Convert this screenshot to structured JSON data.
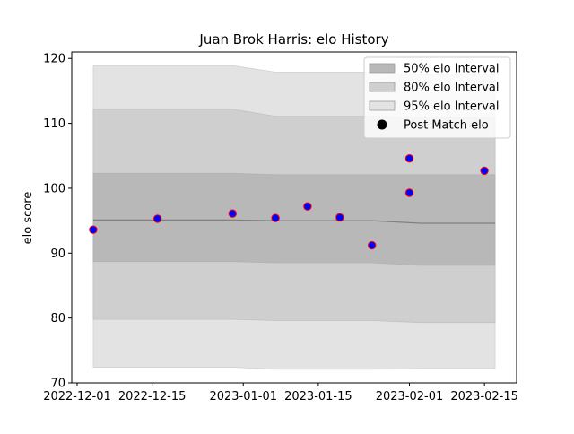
{
  "chart_data": {
    "type": "line",
    "title": "Juan Brok Harris: elo History",
    "xlabel": "",
    "ylabel": "elo score",
    "x_axis_type": "date",
    "xlim": [
      "2022-11-30",
      "2023-02-21"
    ],
    "ylim": [
      70,
      121
    ],
    "x_ticks": [
      "2022-12-01",
      "2022-12-15",
      "2023-01-01",
      "2023-01-15",
      "2023-02-01",
      "2023-02-15"
    ],
    "y_ticks": [
      70,
      80,
      90,
      100,
      110,
      120
    ],
    "grid": false,
    "legend_position": "top-right",
    "dates": [
      "2022-12-04",
      "2022-12-16",
      "2022-12-30",
      "2023-01-07",
      "2023-01-13",
      "2023-01-19",
      "2023-01-25",
      "2023-02-03",
      "2023-02-17"
    ],
    "mean": [
      95.1,
      95.1,
      95.1,
      95.0,
      95.0,
      95.0,
      95.0,
      94.6,
      94.6
    ],
    "bands": [
      {
        "name": "95% elo Interval",
        "color": "#e3e3e3",
        "lower": [
          72.4,
          72.4,
          72.4,
          72.1,
          72.1,
          72.1,
          72.1,
          72.2,
          72.2
        ],
        "upper": [
          118.9,
          118.9,
          118.9,
          117.9,
          117.9,
          117.9,
          117.9,
          117.5,
          117.5
        ]
      },
      {
        "name": "80% elo Interval",
        "color": "#cfcfcf",
        "lower": [
          79.8,
          79.8,
          79.8,
          79.6,
          79.6,
          79.6,
          79.6,
          79.3,
          79.3
        ],
        "upper": [
          112.2,
          112.2,
          112.2,
          111.1,
          111.1,
          111.1,
          111.1,
          110.9,
          110.9
        ]
      },
      {
        "name": "50% elo Interval",
        "color": "#b8b8b8",
        "lower": [
          88.7,
          88.7,
          88.7,
          88.5,
          88.5,
          88.5,
          88.5,
          88.1,
          88.1
        ],
        "upper": [
          102.3,
          102.3,
          102.3,
          102.1,
          102.1,
          102.1,
          102.1,
          102.1,
          102.1
        ]
      }
    ],
    "points_series": {
      "name": "Post Match elo",
      "fill": "#0000ff",
      "edge": "#ff0000"
    },
    "points": [
      {
        "date": "2022-12-04",
        "elo": 93.6
      },
      {
        "date": "2022-12-16",
        "elo": 95.3
      },
      {
        "date": "2022-12-30",
        "elo": 96.1
      },
      {
        "date": "2023-01-07",
        "elo": 95.4
      },
      {
        "date": "2023-01-13",
        "elo": 97.2
      },
      {
        "date": "2023-01-19",
        "elo": 95.5
      },
      {
        "date": "2023-01-25",
        "elo": 91.2
      },
      {
        "date": "2023-02-01",
        "elo": 104.6
      },
      {
        "date": "2023-02-01",
        "elo": 99.3
      },
      {
        "date": "2023-02-15",
        "elo": 102.7
      }
    ],
    "legend": [
      {
        "label": "50% elo Interval",
        "swatch": "band",
        "color": "#b8b8b8"
      },
      {
        "label": "80% elo Interval",
        "swatch": "band",
        "color": "#cfcfcf"
      },
      {
        "label": "95% elo Interval",
        "swatch": "band",
        "color": "#e3e3e3"
      },
      {
        "label": "Post Match elo",
        "swatch": "dot",
        "color": "#000000"
      }
    ]
  }
}
